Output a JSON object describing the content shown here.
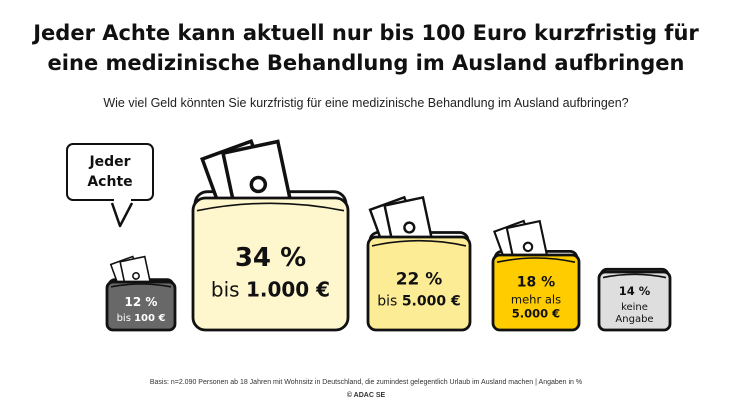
{
  "title_line1": "Jeder Achte kann aktuell nur bis 100 Euro kurzfristig für",
  "title_line2": "eine medizinische Behandlung im Ausland aufbringen",
  "subtitle": "Wie viel Geld könnten Sie kurzfristig für eine medizinische Behandlung im Ausland aufbringen?",
  "callout_line1": "Jeder",
  "callout_line2": "Achte",
  "footnote": "Basis: n=2.090 Personen ab 18 Jahren mit Wohnsitz in Deutschland, die zumindest gelegentlich Urlaub im Ausland machen | Angaben in %",
  "copyright": "© ADAC SE",
  "colors": {
    "dark_gray": "#686868",
    "light_cream": "#fef6cc",
    "medium_yellow": "#fdec96",
    "accent_yellow": "#ffcc00",
    "light_gray": "#dedede",
    "outline": "#111111"
  },
  "chart_data": {
    "type": "bar",
    "style": "wallet pictogram, size proportional to share",
    "categories": [
      "bis 100 €",
      "bis 1.000 €",
      "bis 5.000 €",
      "mehr als 5.000 €",
      "keine Angabe"
    ],
    "values": [
      12,
      34,
      22,
      18,
      14
    ],
    "labels": [
      {
        "pct": "12 %",
        "text": [
          "bis 100 €"
        ]
      },
      {
        "pct": "34 %",
        "text": [
          "bis 1.000 €"
        ]
      },
      {
        "pct": "22 %",
        "text": [
          "bis 5.000 €"
        ]
      },
      {
        "pct": "18 %",
        "text": [
          "mehr als",
          "5.000 €"
        ]
      },
      {
        "pct": "14 %",
        "text": [
          "keine",
          "Angabe"
        ]
      }
    ],
    "fills": [
      "#686868",
      "#fef6cc",
      "#fdec96",
      "#ffcc00",
      "#dedede"
    ],
    "text_colors": [
      "#ffffff",
      "#111111",
      "#111111",
      "#111111",
      "#111111"
    ],
    "has_money": [
      true,
      true,
      true,
      true,
      false
    ],
    "unit": "%"
  }
}
